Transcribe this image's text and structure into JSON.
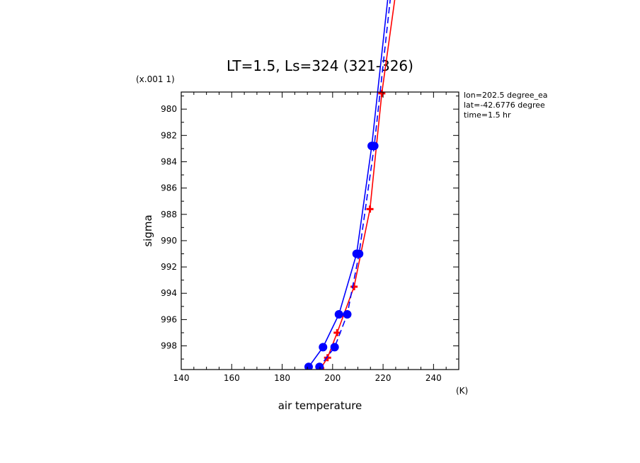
{
  "chart_data": {
    "type": "line",
    "title": "LT=1.5, Ls=324 (321-326)",
    "xlabel": "air temperature",
    "x_units": "(K)",
    "ylabel": "sigma",
    "y_scale_note": "(x.001 1)",
    "xlim": [
      140,
      250
    ],
    "ylim": [
      999.8,
      978.7
    ],
    "xticks": [
      140,
      160,
      180,
      200,
      220,
      240
    ],
    "yticks": [
      980,
      982,
      984,
      986,
      988,
      990,
      992,
      994,
      996,
      998
    ],
    "annotations": [
      "lon=202.5 degree_ea",
      "lat=-42.6776 degree",
      "time=1.5 hr"
    ],
    "series": [
      {
        "color": "#ff0000",
        "marker": "plus",
        "style": "solid",
        "points": [
          {
            "x": 219.5,
            "y": 978.8
          },
          {
            "x": 214.8,
            "y": 987.6
          },
          {
            "x": 208.5,
            "y": 993.5
          },
          {
            "x": 201.8,
            "y": 997.0
          },
          {
            "x": 198.0,
            "y": 998.9
          },
          {
            "x": 195.3,
            "y": 999.7
          }
        ],
        "extend_top": {
          "x": 228.0,
          "y": 967.0
        }
      },
      {
        "color": "#0000ff",
        "marker": "octagon",
        "style": "solid",
        "points": [
          {
            "x": 215.5,
            "y": 982.8
          },
          {
            "x": 209.5,
            "y": 991.0
          },
          {
            "x": 202.5,
            "y": 995.6
          },
          {
            "x": 196.2,
            "y": 998.1
          },
          {
            "x": 190.5,
            "y": 999.6
          }
        ],
        "extend_top": {
          "x": 224.5,
          "y": 967.0
        }
      },
      {
        "color": "#0000ff",
        "marker": "octagon",
        "style": "dashed",
        "points": [
          {
            "x": 216.5,
            "y": 982.8
          },
          {
            "x": 210.5,
            "y": 991.0
          },
          {
            "x": 205.8,
            "y": 995.6
          },
          {
            "x": 200.8,
            "y": 998.1
          },
          {
            "x": 194.8,
            "y": 999.6
          }
        ],
        "extend_top": {
          "x": 225.5,
          "y": 967.0
        }
      }
    ]
  }
}
